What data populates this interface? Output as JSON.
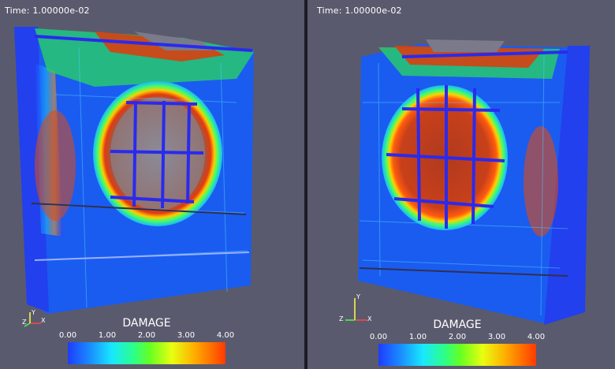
{
  "left_view": {
    "time_label": "Time:  1.00000e-02",
    "colorbar": {
      "title": "DAMAGE",
      "ticks": [
        "0.00",
        "1.00",
        "2.00",
        "3.00",
        "4.00"
      ]
    },
    "axes": {
      "x": "X",
      "y": "Y",
      "z": "Z"
    }
  },
  "right_view": {
    "time_label": "Time:  1.00000e-02",
    "colorbar": {
      "title": "DAMAGE",
      "ticks": [
        "0.00",
        "1.00",
        "2.00",
        "3.00",
        "4.00"
      ]
    },
    "axes": {
      "x": "X",
      "y": "Y",
      "z": "Z"
    }
  },
  "colors": {
    "background": "#5a5a6e",
    "low_damage": "#1f3cff",
    "high_damage": "#ff3a00",
    "mesh_bars": "#2a2aee"
  }
}
